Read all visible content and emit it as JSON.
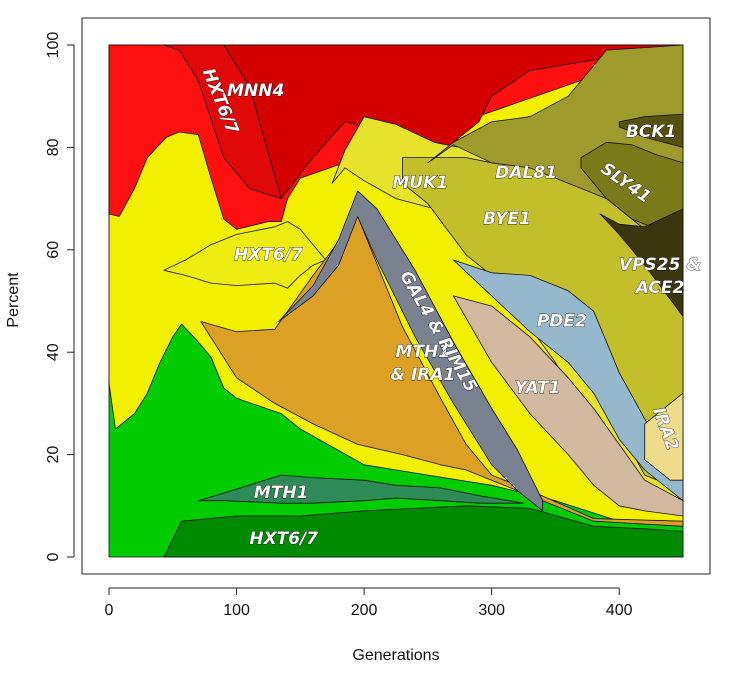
{
  "chart_data": {
    "type": "area",
    "title": "",
    "xlabel": "Generations",
    "ylabel": "Percent",
    "xlim": [
      0,
      450
    ],
    "ylim": [
      0,
      100
    ],
    "x_ticks": [
      0,
      100,
      200,
      300,
      400
    ],
    "y_ticks": [
      0,
      20,
      40,
      60,
      80,
      100
    ],
    "grid": false,
    "bands": [
      {
        "id": "bg-green",
        "color": "#00cc00",
        "x": [
          0,
          450
        ],
        "lower": [
          0,
          0
        ],
        "upper": [
          100,
          100
        ]
      },
      {
        "id": "bg-yellow",
        "color": "#f2f000",
        "x": [
          0,
          5,
          10,
          20,
          30,
          40,
          50,
          57,
          70,
          80,
          90,
          100,
          135,
          150,
          200,
          250,
          300,
          350,
          400,
          450
        ],
        "lower": [
          34,
          25,
          26,
          28,
          32,
          38,
          43,
          45.5,
          42,
          39,
          33,
          31,
          28,
          25,
          18,
          16,
          14,
          11,
          7,
          6
        ],
        "upper": [
          100,
          100,
          100,
          100,
          100,
          100,
          100,
          100,
          100,
          100,
          100,
          100,
          100,
          100,
          100,
          100,
          100,
          100,
          100,
          100
        ]
      },
      {
        "id": "bg-red",
        "color": "#ff1010",
        "x": [
          0,
          8,
          20,
          30,
          45,
          55,
          70,
          80,
          90,
          100,
          125,
          135,
          140,
          150,
          450
        ],
        "lower": [
          67,
          66.5,
          72,
          78,
          82,
          83,
          82.5,
          74,
          66,
          64,
          65.5,
          65.5,
          70,
          74,
          100
        ],
        "upper": [
          100,
          100,
          100,
          100,
          100,
          100,
          100,
          100,
          100,
          100,
          100,
          100,
          100,
          100,
          100
        ]
      },
      {
        "id": "mnn4",
        "label": "MNN4",
        "color": "#d40000",
        "x": [
          43,
          70,
          90,
          110,
          135,
          160,
          185,
          200,
          210,
          265,
          290,
          300,
          330,
          450
        ],
        "lower": [
          100,
          100,
          100,
          88,
          70,
          78,
          85,
          84,
          83,
          80,
          85,
          90,
          95,
          100
        ],
        "upper": [
          100,
          100,
          100,
          100,
          100,
          100,
          100,
          100,
          100,
          100,
          100,
          100,
          100,
          100
        ]
      },
      {
        "id": "hxt67-top",
        "label": "HXT6/7",
        "color": "#e00808",
        "x": [
          43,
          55,
          70,
          90,
          110,
          135
        ],
        "lower": [
          100,
          99,
          93,
          78,
          72,
          70
        ],
        "upper": [
          100,
          100,
          100,
          100,
          92,
          70
        ]
      },
      {
        "id": "hxt67-mid",
        "label": "HXT6/7",
        "color": "#eeec10",
        "x": [
          43,
          60,
          80,
          100,
          130,
          140,
          150,
          160,
          170
        ],
        "lower": [
          56,
          55,
          53.5,
          53,
          53.5,
          52.5,
          55,
          57,
          58
        ],
        "upper": [
          56,
          58,
          61,
          63,
          64.5,
          65.5,
          64,
          61,
          58
        ]
      },
      {
        "id": "mth1-ira1",
        "label": "MTH1 & IRA1",
        "color": "#dba024",
        "x": [
          72,
          100,
          130,
          160,
          195,
          230,
          260,
          280,
          300,
          330,
          380,
          450
        ],
        "lower": [
          46,
          35,
          30,
          26,
          22,
          20,
          18,
          17,
          15,
          12,
          7,
          6
        ],
        "upper": [
          46,
          44,
          44.5,
          55,
          66.5,
          45,
          31,
          22,
          16,
          13,
          7.5,
          7
        ]
      },
      {
        "id": "gal4-rim15",
        "label": "GAL4 & RIM15",
        "color": "#7a8190",
        "x": [
          133,
          160,
          180,
          195,
          210,
          240,
          270,
          300,
          320,
          340
        ],
        "lower": [
          46,
          51,
          57,
          66.5,
          58,
          43,
          30,
          18,
          13,
          9
        ],
        "upper": [
          46,
          53,
          62,
          71.5,
          68,
          56,
          42,
          29,
          21,
          11
        ]
      },
      {
        "id": "muk1",
        "label": "MUK1",
        "color": "#e7e22c",
        "x": [
          175,
          185,
          200,
          225,
          255,
          285,
          315,
          350,
          380,
          400,
          450
        ],
        "lower": [
          73,
          76,
          73.5,
          70,
          68,
          60,
          50,
          38,
          25,
          14,
          10
        ],
        "upper": [
          73,
          79.5,
          86,
          84.5,
          81,
          79.5,
          79,
          76.5,
          73,
          72,
          71
        ]
      },
      {
        "id": "bye1",
        "label": "BYE1",
        "color": "#c3bf2a",
        "x": [
          230,
          250,
          280,
          300,
          330,
          360,
          400,
          420,
          450
        ],
        "lower": [
          73,
          69,
          59,
          55,
          50,
          42,
          25,
          16,
          13
        ],
        "upper": [
          78,
          78,
          78,
          77,
          76,
          73.5,
          69.5,
          66,
          62.5
        ]
      },
      {
        "id": "dal81",
        "label": "DAL81",
        "color": "#9e9a2c",
        "x": [
          250,
          270,
          300,
          330,
          360,
          390,
          420,
          450
        ],
        "lower": [
          77,
          80.5,
          77,
          76,
          73,
          70,
          64,
          58
        ],
        "upper": [
          77,
          81,
          85,
          86,
          90,
          99,
          99.5,
          100
        ]
      },
      {
        "id": "sly41",
        "label": "SLY41",
        "color": "#7a7a18",
        "x": [
          370,
          390,
          410,
          430,
          450
        ],
        "lower": [
          76,
          70,
          66,
          64,
          62
        ],
        "upper": [
          78,
          81,
          80.5,
          78.5,
          77
        ]
      },
      {
        "id": "bck1",
        "label": "BCK1",
        "color": "#55520e",
        "x": [
          400,
          420,
          450
        ],
        "lower": [
          84,
          82,
          80
        ],
        "upper": [
          85,
          86,
          86.5
        ]
      },
      {
        "id": "vps25-ace2",
        "label": "VPS25 & ACE2",
        "color": "#3a3610",
        "x": [
          385,
          400,
          420,
          450
        ],
        "lower": [
          67,
          63,
          57,
          47
        ],
        "upper": [
          67,
          65,
          64.5,
          68
        ]
      },
      {
        "id": "pde2",
        "label": "PDE2",
        "color": "#95b8cd",
        "x": [
          270,
          300,
          330,
          360,
          380,
          400,
          420,
          450
        ],
        "lower": [
          58,
          51,
          44,
          38,
          32,
          23,
          17,
          11
        ],
        "upper": [
          58,
          55.5,
          55,
          52,
          48,
          36,
          27,
          15
        ]
      },
      {
        "id": "yat1",
        "label": "YAT1",
        "color": "#d2b89e",
        "x": [
          270,
          300,
          330,
          360,
          380,
          400,
          420,
          450
        ],
        "lower": [
          51,
          38,
          28,
          20,
          14,
          10,
          9,
          8
        ],
        "upper": [
          51,
          49,
          43,
          35,
          29,
          22,
          15,
          11
        ]
      },
      {
        "id": "ira2",
        "label": "IRA2",
        "color": "#efdc8a",
        "x": [
          420,
          430,
          440,
          450
        ],
        "lower": [
          19,
          17,
          15,
          15
        ],
        "upper": [
          26,
          28,
          30,
          32
        ]
      },
      {
        "id": "mth1-low",
        "label": "MTH1",
        "color": "#2e8b57",
        "x": [
          70,
          90,
          135,
          160,
          200,
          225,
          260,
          290,
          325
        ],
        "lower": [
          11,
          11,
          10.5,
          10.5,
          11,
          11.5,
          11,
          10.5,
          10.5
        ],
        "upper": [
          11,
          12.5,
          16,
          15.5,
          15,
          14,
          13.5,
          12,
          10.5
        ]
      },
      {
        "id": "hxt67-low",
        "label": "HXT6/7",
        "color": "#008a00",
        "x": [
          43,
          57,
          100,
          150,
          200,
          240,
          280,
          330,
          380,
          420,
          450
        ],
        "lower": [
          0,
          0,
          0,
          0,
          0,
          0,
          0,
          0,
          0,
          0,
          0
        ],
        "upper": [
          0,
          7,
          8,
          8,
          9,
          9.5,
          10,
          9.5,
          6,
          5.5,
          5
        ]
      }
    ],
    "annotations": [
      {
        "text": "MNN4",
        "x": 115,
        "y": 91,
        "rotate": 0
      },
      {
        "text": "HXT6/7",
        "x": 87,
        "y": 89,
        "rotate": 68
      },
      {
        "text": "HXT6/7",
        "x": 125,
        "y": 59,
        "rotate": 0
      },
      {
        "text": "MUK1",
        "x": 244,
        "y": 73,
        "rotate": 0
      },
      {
        "text": "DAL81",
        "x": 327,
        "y": 75,
        "rotate": 0
      },
      {
        "text": "BYE1",
        "x": 312,
        "y": 66,
        "rotate": 0
      },
      {
        "text": "BCK1",
        "x": 425,
        "y": 83,
        "rotate": 0
      },
      {
        "text": "SLY41",
        "x": 405,
        "y": 73,
        "rotate": 35
      },
      {
        "text": "VPS25 &",
        "x": 432,
        "y": 57,
        "rotate": 0
      },
      {
        "text": "ACE2",
        "x": 432,
        "y": 52.5,
        "rotate": 0
      },
      {
        "text": "PDE2",
        "x": 355,
        "y": 46,
        "rotate": 0
      },
      {
        "text": "MTH1",
        "x": 246,
        "y": 40,
        "rotate": 0
      },
      {
        "text": "& IRA1",
        "x": 246,
        "y": 35.5,
        "rotate": 0
      },
      {
        "text": "GAL4 & RIM15",
        "x": 258,
        "y": 44,
        "rotate": 60
      },
      {
        "text": "YAT1",
        "x": 336,
        "y": 33,
        "rotate": 0
      },
      {
        "text": "IRA2",
        "x": 436,
        "y": 25,
        "rotate": 70
      },
      {
        "text": "MTH1",
        "x": 135,
        "y": 12.5,
        "rotate": 0
      },
      {
        "text": "HXT6/7",
        "x": 137,
        "y": 3.5,
        "rotate": 0
      }
    ]
  }
}
